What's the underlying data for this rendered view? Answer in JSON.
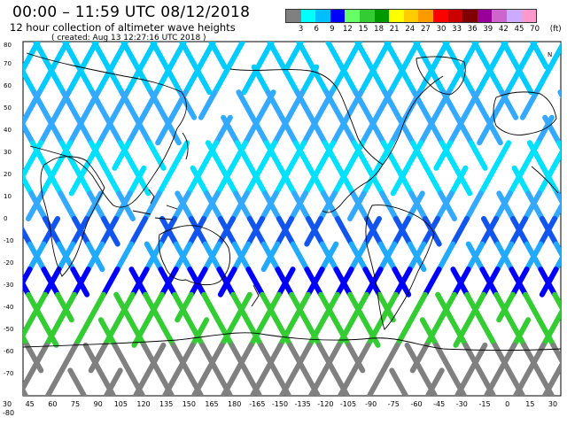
{
  "header": {
    "title": "00:00 – 11:59 UTC 08/12/2018",
    "subtitle": "12 hour collection of altimeter wave heights",
    "created": "( created: Aug 13 12:27:16 UTC 2018 )"
  },
  "colorbar": {
    "colors": [
      "#808080",
      "#00ffff",
      "#00bfff",
      "#0000ff",
      "#66ff66",
      "#33cc33",
      "#009900",
      "#ffff00",
      "#ffcc00",
      "#ff9900",
      "#ff0000",
      "#cc0000",
      "#800000",
      "#990099",
      "#cc66cc",
      "#ccaaff",
      "#ff99cc"
    ],
    "labels": [
      "3",
      "6",
      "9",
      "12",
      "15",
      "18",
      "21",
      "24",
      "27",
      "30",
      "33",
      "36",
      "39",
      "42",
      "45",
      "70",
      "(ft)"
    ]
  },
  "axes": {
    "lat_labels": [
      "70",
      "60",
      "50",
      "40",
      "30",
      "20",
      "10",
      "0",
      "-10",
      "-20",
      "-30",
      "-40",
      "-50",
      "-60",
      "-70"
    ],
    "top_lat_label": "80",
    "lon_labels": [
      "30",
      "45",
      "60",
      "75",
      "90",
      "105",
      "120",
      "135",
      "150",
      "165",
      "180",
      "-165",
      "-150",
      "-135",
      "-120",
      "-105",
      "-90",
      "-75",
      "-60",
      "-45",
      "-30",
      "-15",
      "0",
      "15",
      "30"
    ],
    "bottom_extra_label": "-80",
    "north_label": "N"
  }
}
